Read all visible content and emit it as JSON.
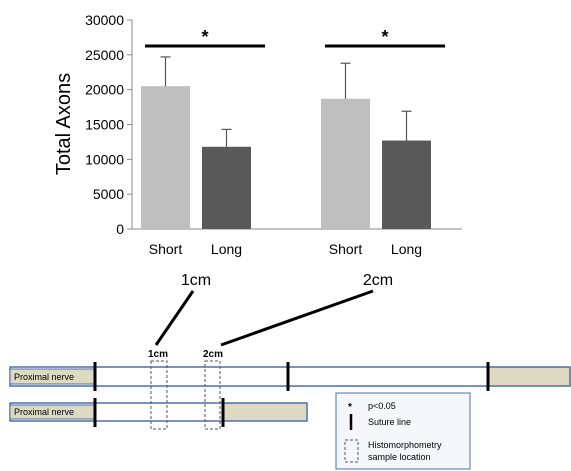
{
  "chart_data": {
    "type": "bar",
    "ylabel": "Total Axons",
    "ylim": [
      0,
      30000
    ],
    "yticks": [
      0,
      5000,
      10000,
      15000,
      20000,
      25000,
      30000
    ],
    "grid": false,
    "groups": [
      {
        "label": "1cm",
        "bars": [
          {
            "category": "Short",
            "value": 20500,
            "error": 4200,
            "color": "#bfbfbf"
          },
          {
            "category": "Long",
            "value": 11800,
            "error": 2500,
            "color": "#595959"
          }
        ],
        "significance": "*"
      },
      {
        "label": "2cm",
        "bars": [
          {
            "category": "Short",
            "value": 18700,
            "error": 5100,
            "color": "#bfbfbf"
          },
          {
            "category": "Long",
            "value": 12700,
            "error": 4200,
            "color": "#595959"
          }
        ],
        "significance": "*"
      }
    ]
  },
  "diagram": {
    "nerve_label": "Proximal nerve",
    "sample_labels": [
      "1cm",
      "2cm"
    ],
    "legend": {
      "significance_symbol": "*",
      "significance_text": "p<0.05",
      "suture_text": "Suture line",
      "sample_text_line1": "Histomorphometry",
      "sample_text_line2": "sample location"
    },
    "colors": {
      "nerve_outline": "#4f6fa8",
      "graft_fill": "#ddd9c3"
    }
  }
}
